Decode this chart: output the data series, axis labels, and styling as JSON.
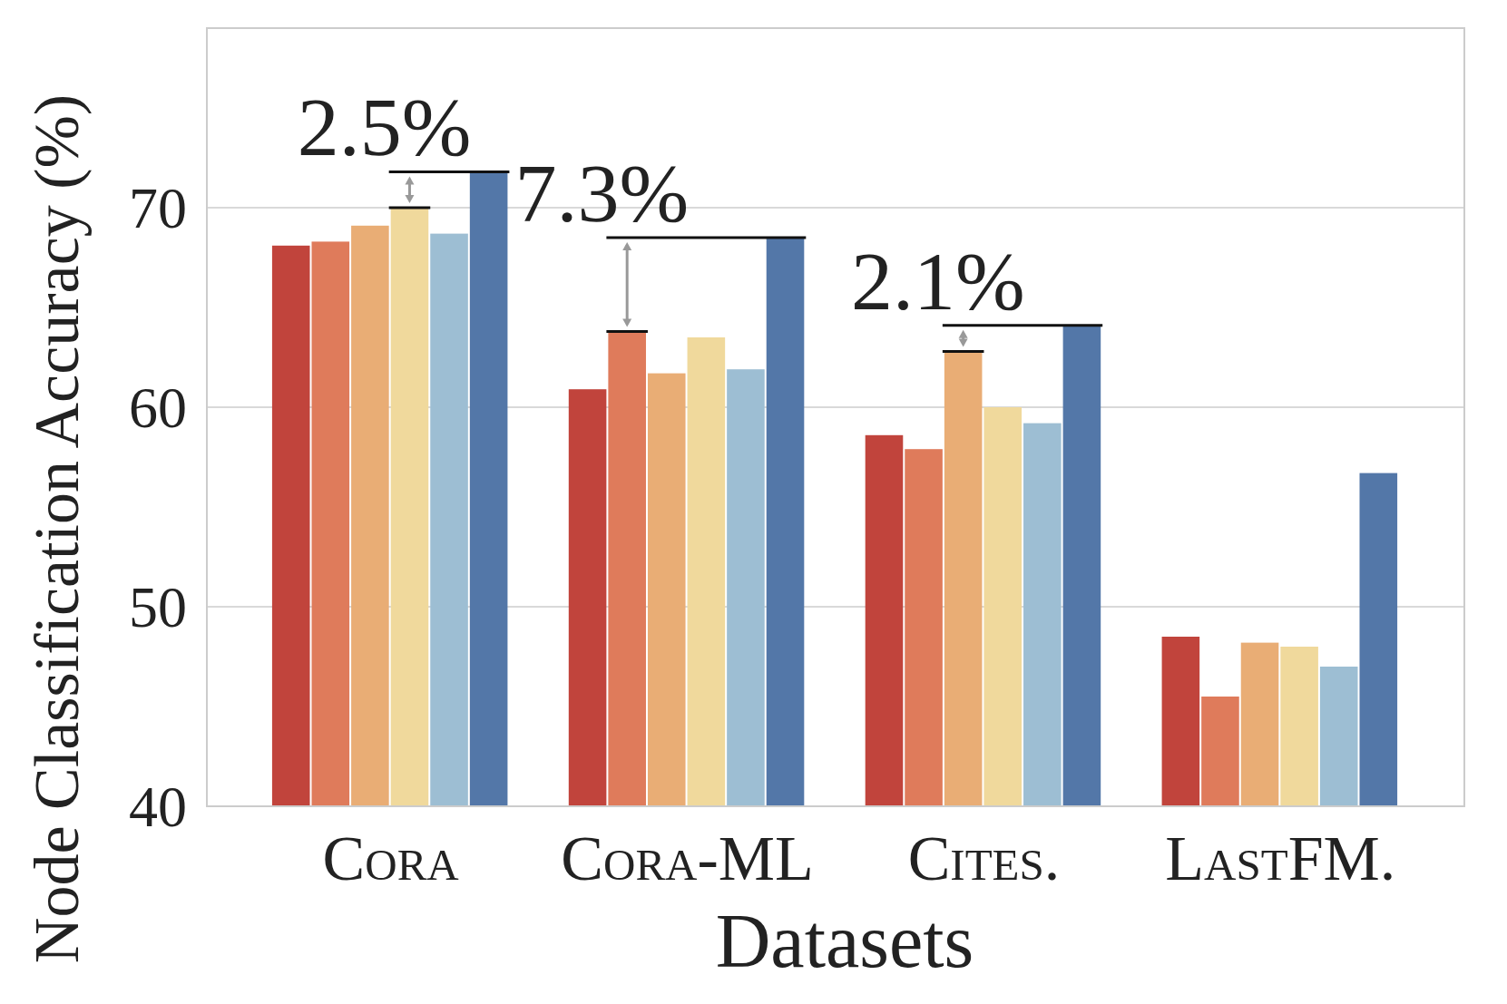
{
  "chart_data": {
    "type": "bar",
    "xlabel": "Datasets",
    "ylabel": "Node Classification Accuracy (%)",
    "categories": [
      "Cora",
      "Cora-ML",
      "Cites.",
      "LastFM."
    ],
    "series": [
      {
        "color": "#c1443c",
        "values": [
          68.1,
          60.9,
          58.6,
          48.5
        ]
      },
      {
        "color": "#df7b5b",
        "values": [
          68.3,
          63.8,
          57.9,
          45.5
        ]
      },
      {
        "color": "#e9ad75",
        "values": [
          69.1,
          61.7,
          62.8,
          48.2
        ]
      },
      {
        "color": "#f0d99c",
        "values": [
          70.0,
          63.5,
          60.0,
          48.0
        ]
      },
      {
        "color": "#9dbed3",
        "values": [
          68.7,
          61.9,
          59.2,
          47.0
        ]
      },
      {
        "color": "#5377a8",
        "values": [
          71.8,
          68.5,
          64.1,
          56.7
        ]
      }
    ],
    "annotations": [
      "2.5%",
      "7.3%",
      "2.1%"
    ],
    "ylim": [
      40,
      79
    ],
    "yticks": [
      40,
      50,
      60,
      70
    ],
    "grid": "y"
  }
}
